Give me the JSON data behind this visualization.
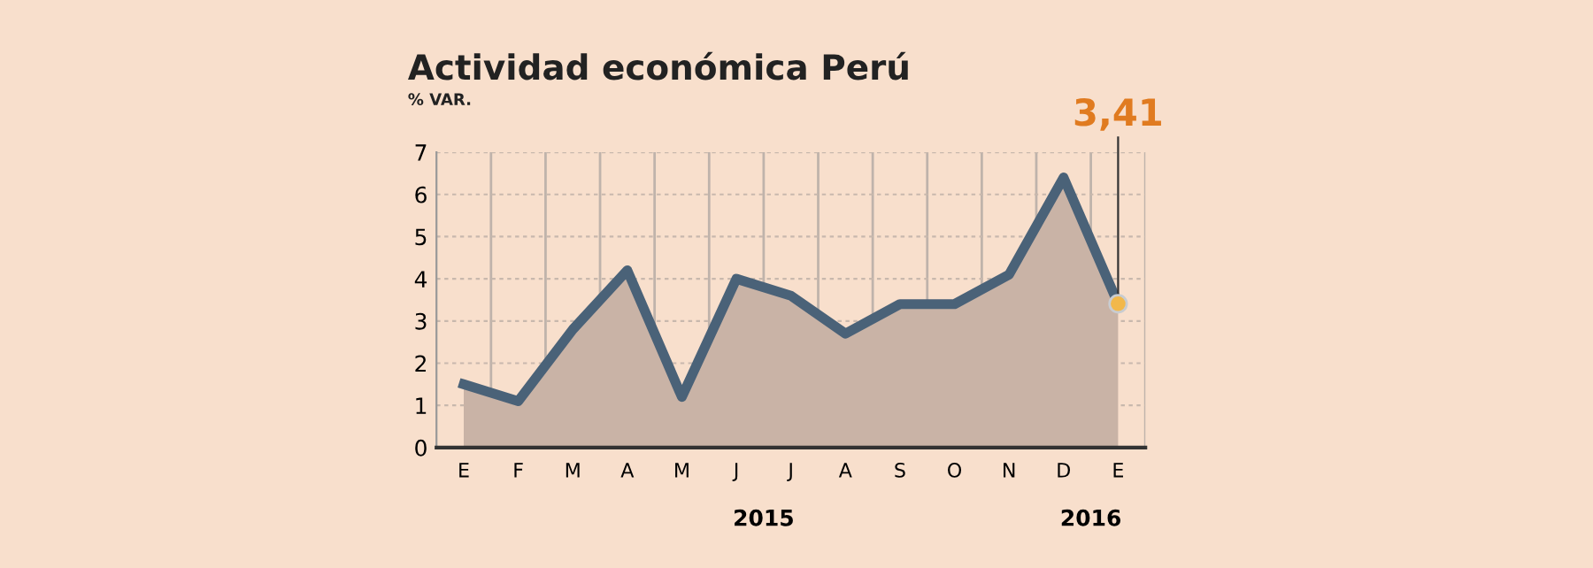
{
  "chart_data": {
    "type": "area",
    "title": "Actividad económica Perú",
    "subtitle": "% VAR.",
    "categories": [
      "E",
      "F",
      "M",
      "A",
      "M",
      "J",
      "J",
      "A",
      "S",
      "O",
      "N",
      "D",
      "E"
    ],
    "series": [
      {
        "color": "#4a6278",
        "values": [
          1.5,
          1.1,
          2.8,
          4.2,
          1.2,
          4.0,
          3.6,
          2.7,
          3.4,
          3.4,
          4.1,
          6.4,
          3.41
        ],
        "value_labels": [
          null,
          null,
          null,
          null,
          null,
          null,
          null,
          null,
          null,
          null,
          null,
          null,
          "3,41"
        ]
      }
    ],
    "annotations": [
      "2015",
      "2016"
    ],
    "ylim": [
      0,
      7
    ],
    "yticks": [
      0,
      1,
      2,
      3,
      4,
      5,
      6,
      7
    ],
    "grid": true
  }
}
